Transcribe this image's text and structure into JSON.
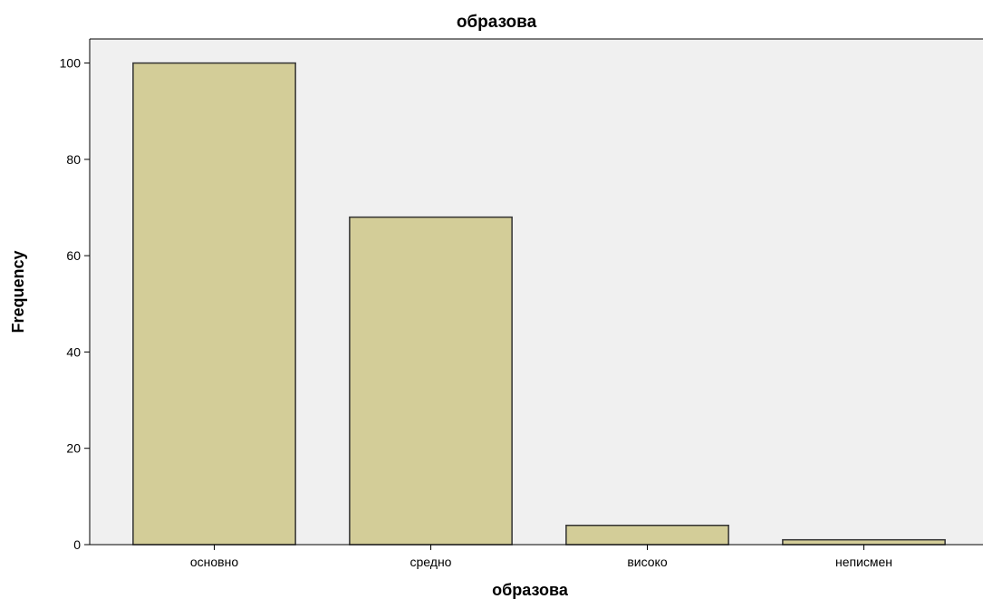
{
  "chart_data": {
    "type": "bar",
    "title": "образова",
    "xlabel": "образова",
    "ylabel": "Frequency",
    "categories": [
      "основно",
      "средно",
      "високо",
      "неписмен"
    ],
    "values": [
      100,
      68,
      4,
      1
    ],
    "ylim": [
      0,
      105
    ],
    "yticks": [
      0,
      20,
      40,
      60,
      80,
      100
    ],
    "grid": false,
    "colors": {
      "bar_fill": "#d3cd98",
      "bar_stroke": "#333333",
      "plot_bg": "#f0f0f0",
      "axis": "#000000"
    }
  }
}
